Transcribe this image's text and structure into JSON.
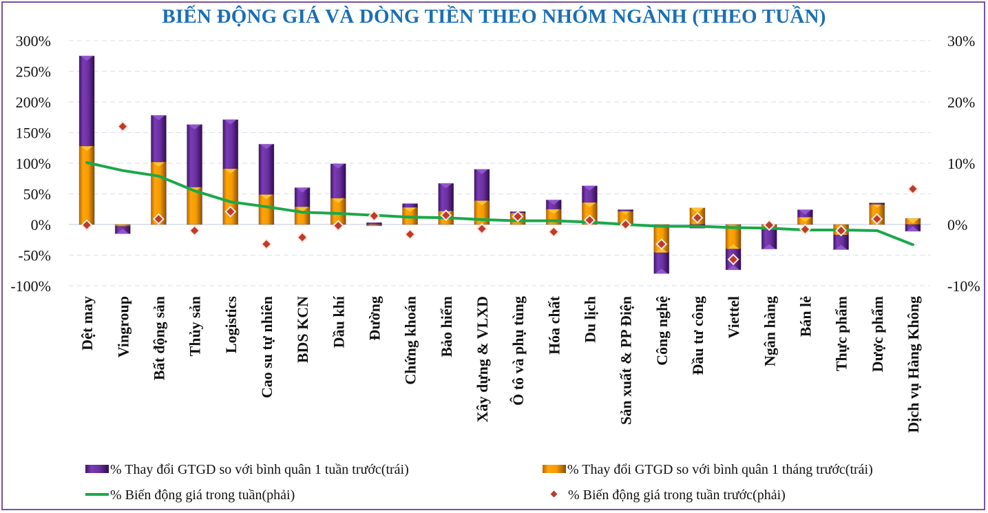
{
  "chart_data": {
    "type": "bar",
    "title": "BIẾN ĐỘNG GIÁ VÀ DÒNG TIỀN THEO NHÓM NGÀNH (THEO TUẦN)",
    "xlabel": "",
    "ylabel_left": "",
    "ylabel_right": "",
    "ylim_left": [
      -100,
      300
    ],
    "ylim_right": [
      -10,
      30
    ],
    "yticks_left": [
      "300%",
      "250%",
      "200%",
      "150%",
      "100%",
      "50%",
      "0%",
      "-50%",
      "-100%"
    ],
    "yticks_right": [
      "30%",
      "20%",
      "10%",
      "0%",
      "-10%"
    ],
    "grid": true,
    "legend_position": "bottom",
    "categories": [
      "Dệt may",
      "Vingroup",
      "Bất động sản",
      "Thủy sản",
      "Logistics",
      "Cao su tự nhiên",
      "BDS KCN",
      "Dầu khí",
      "Đường",
      "Chứng khoán",
      "Bảo hiểm",
      "Xây dựng & VLXD",
      "Ô tô và phụ tùng",
      "Hóa chất",
      "Du lịch",
      "Sản xuất & PP Điện",
      "Công nghệ",
      "Đầu tư công",
      "Viettel",
      "Ngân hàng",
      "Bán lẻ",
      "Thực phẩm",
      "Dược phẩm",
      "Dịch vụ Hàng Không"
    ],
    "series": [
      {
        "name": "% Thay đổi GTGD so với bình quân 1 tuần trước(trái)",
        "type": "stacked-bar",
        "axis": "left",
        "color": "#6a2fa0",
        "values": [
          147,
          -12,
          76,
          102,
          80,
          82,
          31,
          56,
          3,
          6,
          45,
          51,
          2,
          15,
          27,
          0,
          -34,
          -6,
          -34,
          -34,
          12,
          -24,
          0,
          -11
        ]
      },
      {
        "name": "% Thay đổi GTGD so với bình quân 1 tháng trước(trái)",
        "type": "stacked-bar",
        "axis": "left",
        "color": "#f59b00",
        "values": [
          128,
          -3,
          102,
          61,
          91,
          49,
          29,
          43,
          0,
          28,
          22,
          39,
          19,
          25,
          36,
          24,
          -46,
          27,
          -40,
          -6,
          12,
          -17,
          35,
          10
        ]
      },
      {
        "name": "% Biến động giá trong tuần(phải)",
        "type": "line",
        "axis": "right",
        "color": "#1aa84a",
        "values": [
          10.1,
          8.8,
          7.9,
          5.5,
          3.7,
          2.9,
          2.0,
          1.8,
          1.5,
          1.2,
          1.1,
          0.8,
          0.6,
          0.6,
          0.4,
          0.0,
          -0.3,
          -0.3,
          -0.5,
          -0.6,
          -0.9,
          -0.9,
          -1.0,
          -3.3
        ]
      },
      {
        "name": "% Biến động giá trong tuần trước(phải)",
        "type": "scatter",
        "axis": "right",
        "color": "#c0392b",
        "values": [
          -0.1,
          16.0,
          0.9,
          -1.0,
          2.1,
          -3.2,
          -2.1,
          -0.2,
          1.4,
          -1.6,
          1.5,
          -0.7,
          1.3,
          -1.2,
          0.7,
          0.0,
          -3.2,
          1.1,
          -5.7,
          -0.1,
          -0.8,
          -1.0,
          0.9,
          5.8
        ]
      }
    ]
  }
}
